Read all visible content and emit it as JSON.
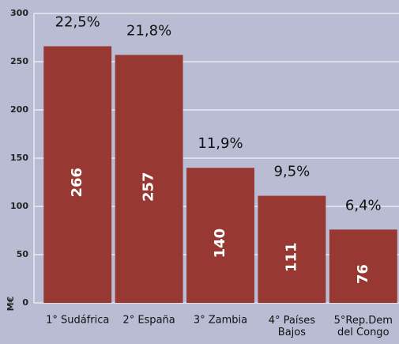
{
  "chart_data": {
    "type": "bar",
    "y_label": "M€",
    "categories": [
      "1° Sudáfrica",
      "2° España",
      "3°  Zambia",
      "4° Países\nBajos",
      "5°Rep.Dem\ndel Congo"
    ],
    "values": [
      266,
      257,
      140,
      111,
      76
    ],
    "annotations": [
      "22,5%",
      "21,8%",
      "11,9%",
      "9,5%",
      "6,4%"
    ],
    "color": "#983833",
    "ylim": [
      0,
      300
    ],
    "yticks": [
      0,
      50,
      100,
      150,
      200,
      250,
      300
    ],
    "grid": true
  }
}
